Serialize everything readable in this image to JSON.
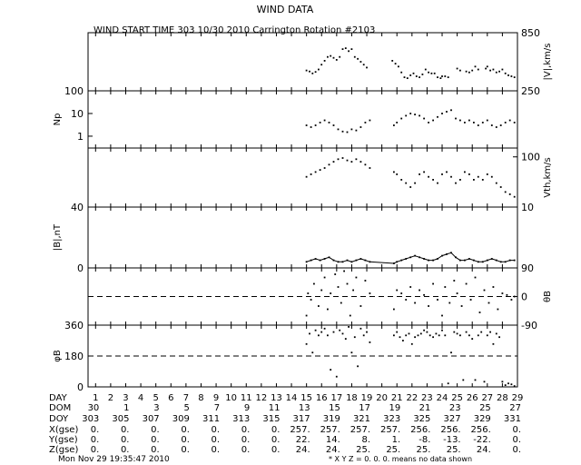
{
  "title": "WIND DATA",
  "subtitle": "WIND START TIME 303 10/30 2010 Carrington Rotation #2103",
  "footer_timestamp": "Mon Nov 29 19:35:47 2010",
  "footer_note": "* X Y Z = 0. 0. 0. means no data shown",
  "chart_data": [
    {
      "id": "speed",
      "type": "scatter",
      "ylabel_right": "|V|,km/s",
      "ylim": [
        250,
        850
      ],
      "ticks_right": [
        "850",
        "250"
      ],
      "x": [
        15.0,
        15.2,
        15.4,
        15.6,
        15.8,
        16.0,
        16.2,
        16.4,
        16.6,
        16.8,
        17.0,
        17.2,
        17.4,
        17.6,
        17.8,
        18.0,
        18.2,
        18.4,
        18.6,
        18.8,
        19.0,
        20.7,
        20.9,
        21.1,
        21.3,
        21.5,
        21.7,
        21.9,
        22.1,
        22.3,
        22.5,
        22.7,
        22.9,
        23.1,
        23.3,
        23.5,
        23.7,
        23.9,
        24.0,
        24.2,
        24.4,
        25.0,
        25.2,
        25.6,
        25.8,
        26.0,
        26.2,
        26.4,
        26.9,
        27.0,
        27.2,
        27.4,
        27.6,
        27.8,
        28.0,
        28.2,
        28.4,
        28.6,
        28.8
      ],
      "y": [
        460,
        450,
        430,
        445,
        470,
        520,
        560,
        600,
        610,
        590,
        570,
        600,
        680,
        690,
        660,
        680,
        600,
        580,
        550,
        520,
        490,
        560,
        530,
        500,
        440,
        390,
        380,
        410,
        430,
        400,
        390,
        420,
        470,
        440,
        430,
        430,
        390,
        380,
        400,
        400,
        390,
        480,
        460,
        450,
        440,
        460,
        500,
        470,
        480,
        500,
        460,
        470,
        440,
        450,
        470,
        430,
        410,
        400,
        390
      ]
    },
    {
      "id": "density",
      "type": "scatter",
      "ylabel": "Np",
      "ylim": [
        0.3,
        100
      ],
      "log_scale": true,
      "ticks_left": [
        "100",
        "10",
        "1"
      ],
      "x": [
        15.0,
        15.3,
        15.6,
        15.9,
        16.2,
        16.5,
        16.8,
        17.1,
        17.4,
        17.7,
        18.0,
        18.3,
        18.6,
        18.9,
        19.2,
        20.8,
        21.0,
        21.3,
        21.6,
        21.9,
        22.2,
        22.5,
        22.8,
        23.1,
        23.4,
        23.7,
        24.0,
        24.3,
        24.6,
        24.9,
        25.2,
        25.5,
        25.8,
        26.1,
        26.4,
        26.7,
        27.0,
        27.3,
        27.6,
        27.9,
        28.2,
        28.5,
        28.8
      ],
      "y": [
        3,
        2.5,
        3,
        4,
        5,
        4,
        3,
        2,
        1.6,
        1.5,
        2,
        1.8,
        2.5,
        4,
        5,
        3,
        4,
        6,
        8,
        10,
        9,
        8,
        6,
        4,
        5,
        7,
        10,
        12,
        14,
        6,
        5,
        4,
        5,
        4,
        3,
        4,
        5,
        3,
        2.5,
        3,
        4,
        5,
        4
      ]
    },
    {
      "id": "thermal-speed",
      "type": "scatter",
      "ylabel_right": "Vth,km/s",
      "ylim": [
        10,
        150
      ],
      "log_scale": true,
      "ticks_right": [
        "100",
        "10"
      ],
      "x": [
        15.0,
        15.3,
        15.6,
        15.9,
        16.2,
        16.5,
        16.8,
        17.1,
        17.4,
        17.7,
        18.0,
        18.3,
        18.6,
        18.9,
        19.2,
        20.8,
        21.0,
        21.3,
        21.6,
        21.9,
        22.2,
        22.5,
        22.8,
        23.1,
        23.4,
        23.7,
        24.0,
        24.3,
        24.6,
        24.9,
        25.2,
        25.5,
        25.8,
        26.1,
        26.4,
        26.7,
        27.0,
        27.3,
        27.6,
        27.9,
        28.2,
        28.5,
        28.8
      ],
      "y": [
        40,
        45,
        50,
        55,
        60,
        70,
        80,
        90,
        95,
        85,
        80,
        90,
        80,
        70,
        60,
        50,
        45,
        35,
        30,
        25,
        30,
        45,
        50,
        40,
        35,
        30,
        45,
        50,
        40,
        30,
        35,
        50,
        45,
        35,
        40,
        35,
        45,
        40,
        30,
        25,
        20,
        18,
        16
      ]
    },
    {
      "id": "field-magnitude",
      "type": "line",
      "ylabel": "|B|,nT",
      "ylim": [
        0,
        40
      ],
      "ticks_left": [
        "40",
        "0"
      ],
      "x": [
        15.0,
        15.3,
        15.6,
        15.9,
        16.2,
        16.5,
        16.8,
        17.1,
        17.4,
        17.7,
        18.0,
        18.3,
        18.6,
        18.9,
        19.2,
        20.8,
        21.0,
        21.3,
        21.6,
        21.9,
        22.2,
        22.5,
        22.8,
        23.1,
        23.4,
        23.7,
        24.0,
        24.3,
        24.6,
        24.9,
        25.2,
        25.5,
        25.8,
        26.1,
        26.4,
        26.7,
        27.0,
        27.3,
        27.6,
        27.9,
        28.2,
        28.5,
        28.8
      ],
      "y": [
        4,
        5,
        6,
        5,
        6,
        7,
        5,
        4,
        4,
        5,
        4,
        5,
        6,
        5,
        4,
        3,
        4,
        5,
        6,
        7,
        8,
        7,
        6,
        5,
        5,
        6,
        8,
        9,
        10,
        7,
        5,
        5,
        6,
        5,
        4,
        4,
        5,
        6,
        5,
        4,
        4,
        5,
        5
      ]
    },
    {
      "id": "theta-b",
      "type": "scatter",
      "ylabel_right": "θB",
      "ylim": [
        -90,
        90
      ],
      "ticks_right": [
        "90",
        "0",
        "-90"
      ],
      "reference_line": 0,
      "x": [
        15.0,
        15.1,
        15.3,
        15.5,
        15.8,
        16.0,
        16.2,
        16.4,
        16.6,
        16.9,
        17.1,
        17.3,
        17.5,
        17.7,
        17.9,
        18.1,
        18.3,
        18.6,
        18.9,
        19.2,
        20.8,
        21.0,
        21.3,
        21.6,
        21.9,
        22.2,
        22.5,
        22.8,
        23.1,
        23.4,
        23.7,
        24.0,
        24.2,
        24.5,
        24.8,
        25.0,
        25.3,
        25.6,
        25.9,
        26.2,
        26.5,
        26.8,
        27.1,
        27.4,
        27.7,
        28.0,
        28.3,
        28.6,
        28.8
      ],
      "y": [
        -60,
        10,
        -10,
        40,
        -30,
        20,
        60,
        -40,
        10,
        70,
        30,
        -20,
        80,
        40,
        -60,
        20,
        60,
        -30,
        50,
        10,
        -40,
        20,
        10,
        -10,
        30,
        -20,
        20,
        5,
        -30,
        40,
        -10,
        -60,
        30,
        -20,
        50,
        10,
        -30,
        40,
        -10,
        60,
        -50,
        20,
        -20,
        30,
        -40,
        10,
        5,
        -10,
        0
      ]
    },
    {
      "id": "phi-b",
      "type": "scatter",
      "ylabel": "φB",
      "ylim": [
        0,
        360
      ],
      "ticks_left": [
        "360",
        "180",
        "0"
      ],
      "reference_line": 180,
      "x": [
        15.0,
        15.2,
        15.4,
        15.6,
        15.8,
        16.0,
        16.2,
        16.4,
        16.6,
        16.8,
        17.0,
        17.2,
        17.4,
        17.6,
        17.8,
        18.0,
        18.2,
        18.4,
        18.6,
        18.8,
        19.0,
        19.2,
        20.8,
        21.0,
        21.2,
        21.4,
        21.6,
        21.8,
        22.0,
        22.2,
        22.4,
        22.6,
        22.8,
        23.0,
        23.2,
        23.4,
        23.6,
        23.8,
        24.0,
        24.2,
        24.4,
        24.6,
        24.8,
        25.0,
        25.2,
        25.4,
        25.6,
        25.8,
        26.0,
        26.2,
        26.4,
        26.6,
        26.8,
        27.0,
        27.2,
        27.4,
        27.6,
        27.8,
        28.0,
        28.2,
        28.4,
        28.6,
        28.8
      ],
      "y": [
        250,
        310,
        200,
        330,
        300,
        320,
        340,
        300,
        100,
        320,
        60,
        330,
        310,
        280,
        350,
        200,
        290,
        120,
        340,
        300,
        320,
        260,
        300,
        320,
        290,
        270,
        300,
        310,
        250,
        290,
        300,
        310,
        330,
        320,
        300,
        290,
        310,
        300,
        330,
        300,
        20,
        200,
        320,
        310,
        300,
        40,
        320,
        300,
        280,
        40,
        300,
        320,
        30,
        300,
        320,
        250,
        310,
        290,
        30,
        10,
        20,
        15,
        5
      ]
    }
  ],
  "x_axis": {
    "xlim": [
      0.5,
      29
    ],
    "tick_positions": [
      1,
      2,
      3,
      4,
      5,
      6,
      7,
      8,
      9,
      10,
      11,
      12,
      13,
      14,
      15,
      16,
      17,
      18,
      19,
      20,
      21,
      22,
      23,
      24,
      25,
      26,
      27,
      28,
      29
    ],
    "columns": [
      1,
      3,
      5,
      7,
      9,
      11,
      13,
      15,
      17,
      19,
      21,
      23,
      25,
      27,
      29
    ]
  },
  "table": {
    "row_labels": [
      "DAY",
      "DOM",
      "DOY",
      "X(gse)",
      "Y(gse)",
      "Z(gse)"
    ],
    "day_values": [
      "1",
      "2",
      "3",
      "4",
      "5",
      "6",
      "7",
      "8",
      "9",
      "10",
      "11",
      "12",
      "13",
      "14",
      "15",
      "16",
      "17",
      "18",
      "19",
      "20",
      "21",
      "22",
      "23",
      "24",
      "25",
      "26",
      "27",
      "28",
      "29"
    ],
    "dom_values": [
      "30",
      "1",
      "3",
      "5",
      "7",
      "9",
      "11",
      "13",
      "15",
      "17",
      "19",
      "21",
      "23",
      "25",
      "27"
    ],
    "doy_values": [
      "303",
      "305",
      "307",
      "309",
      "311",
      "313",
      "315",
      "317",
      "319",
      "321",
      "323",
      "325",
      "327",
      "329",
      "331"
    ],
    "x_values": [
      "0.",
      "0.",
      "0.",
      "0.",
      "0.",
      "0.",
      "0.",
      "257.",
      "257.",
      "257.",
      "257.",
      "256.",
      "256.",
      "256.",
      "0."
    ],
    "y_values": [
      "0.",
      "0.",
      "0.",
      "0.",
      "0.",
      "0.",
      "0.",
      "22.",
      "14.",
      "8.",
      "1.",
      "-8.",
      "-13.",
      "-22.",
      "0."
    ],
    "z_values": [
      "0.",
      "0.",
      "0.",
      "0.",
      "0.",
      "0.",
      "0.",
      "24.",
      "24.",
      "25.",
      "25.",
      "25.",
      "25.",
      "24.",
      "0."
    ]
  }
}
